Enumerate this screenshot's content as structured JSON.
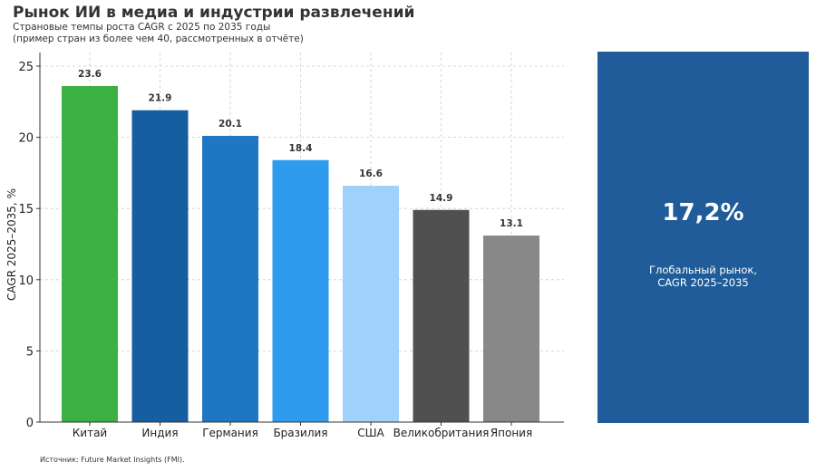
{
  "title": "Рынок ИИ в медиа и индустрии развлечений",
  "subtitle_line1": "Страновые темпы роста CAGR с 2025 по 2035 годы",
  "subtitle_line2": "(пример стран из более чем 40, рассмотренных в отчёте)",
  "source": "Источник: Future Market Insights (FMI).",
  "kpi": {
    "value": "17,2%",
    "label_line1": "Глобальный рынок,",
    "label_line2": "CAGR 2025–2035",
    "color": "#1f5c99"
  },
  "chart_data": {
    "type": "bar",
    "categories": [
      "Китай",
      "Индия",
      "Германия",
      "Бразилия",
      "США",
      "Великобритания",
      "Япония"
    ],
    "values": [
      23.6,
      21.9,
      20.1,
      18.4,
      16.6,
      14.9,
      13.1
    ],
    "data_labels": [
      "23.6",
      "21.9",
      "20.1",
      "18.4",
      "16.6",
      "14.9",
      "13.1"
    ],
    "colors": [
      "#3cb043",
      "#155ea0",
      "#1f77c4",
      "#2e9bef",
      "#9fd1fb",
      "#505050",
      "#888888"
    ],
    "xlabel": "",
    "ylabel": "CAGR 2025–2035, %",
    "ylim": [
      0,
      25
    ],
    "yticks": [
      0,
      5,
      10,
      15,
      20,
      25
    ],
    "grid": true
  }
}
